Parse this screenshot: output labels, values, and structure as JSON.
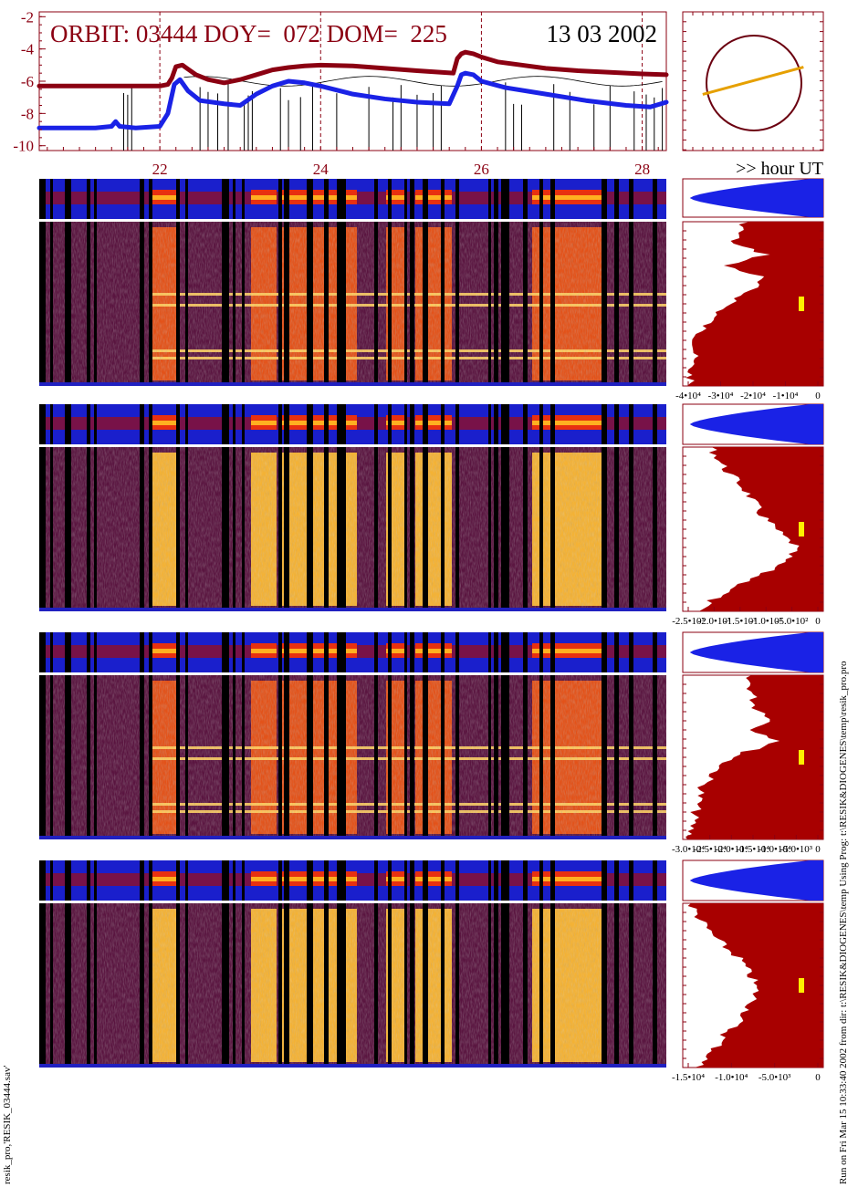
{
  "colors": {
    "dark_red": "#8b0012",
    "blue": "#1a22e6",
    "orange": "#e6a000",
    "fill_red": "#a80000",
    "yellow": "#ffee00",
    "tick": "#8b0012"
  },
  "header": {
    "orbit_text": "ORBIT: 03444 DOY=  072 DOM=  225",
    "date_text": "13 03 2002"
  },
  "footer": {
    "hour_ut_label": ">> hour UT",
    "left_vertical": "resik_pro,'RESIK_03444.sav'",
    "right_vertical": "Run on Fri Mar 15 10:33:40 2002  from dir: t:\\RESIK&DIOGENES\\temp Using Prog: t:\\RESIK&DIOGENES\\temp\\resik_pro.pro"
  },
  "chart_data": [
    {
      "type": "line",
      "name": "orbit-lightcurve",
      "xlim": [
        20.5,
        28.3
      ],
      "ylim": [
        -10.3,
        -1.7
      ],
      "y_ticks": [
        "-2",
        "-4",
        "-6",
        "-8",
        "-10"
      ],
      "x_ticks": [
        "22",
        "24",
        "26",
        "28"
      ],
      "grid_x": [
        22,
        24,
        26,
        28
      ],
      "series": [
        {
          "color": "#8b0012",
          "x": [
            20.5,
            21.0,
            21.5,
            22.0,
            22.1,
            22.15,
            22.2,
            22.28,
            22.35,
            22.45,
            22.6,
            22.8,
            23.0,
            23.2,
            23.4,
            23.6,
            23.8,
            24.0,
            24.4,
            24.8,
            25.2,
            25.5,
            25.65,
            25.7,
            25.75,
            25.8,
            25.9,
            26.0,
            26.2,
            26.5,
            26.8,
            27.2,
            27.6,
            28.0,
            28.3
          ],
          "y": [
            -6.3,
            -6.3,
            -6.3,
            -6.3,
            -6.2,
            -5.8,
            -5.1,
            -5.0,
            -5.25,
            -5.6,
            -5.9,
            -6.1,
            -5.9,
            -5.6,
            -5.3,
            -5.15,
            -5.05,
            -5.0,
            -5.05,
            -5.2,
            -5.35,
            -5.45,
            -5.5,
            -4.6,
            -4.3,
            -4.2,
            -4.3,
            -4.5,
            -4.8,
            -5.0,
            -5.2,
            -5.35,
            -5.45,
            -5.55,
            -5.6
          ]
        },
        {
          "color": "#1a22e6",
          "x": [
            20.5,
            20.8,
            21.2,
            21.4,
            21.45,
            21.5,
            21.7,
            22.0,
            22.1,
            22.18,
            22.25,
            22.35,
            22.5,
            22.8,
            23.0,
            23.2,
            23.4,
            23.6,
            23.8,
            24.0,
            24.4,
            24.8,
            25.2,
            25.6,
            25.7,
            25.75,
            25.8,
            25.9,
            26.0,
            26.3,
            26.8,
            27.3,
            27.8,
            28.1,
            28.3
          ],
          "y": [
            -8.9,
            -8.9,
            -8.9,
            -8.8,
            -8.5,
            -8.8,
            -8.9,
            -8.8,
            -8.0,
            -6.2,
            -5.9,
            -6.6,
            -7.2,
            -7.4,
            -7.5,
            -6.8,
            -6.3,
            -6.0,
            -6.1,
            -6.3,
            -6.8,
            -7.1,
            -7.3,
            -7.4,
            -6.3,
            -5.6,
            -5.5,
            -5.6,
            -6.0,
            -6.4,
            -6.8,
            -7.2,
            -7.5,
            -7.6,
            -7.3
          ]
        }
      ]
    },
    {
      "type": "scatter",
      "name": "orbit-position",
      "circle": true,
      "segment": [
        [
          -0.9,
          -0.2
        ],
        [
          0.95,
          0.28
        ]
      ]
    },
    {
      "type": "heatmap",
      "name": "spectrogram-panels",
      "count": 4,
      "x_ticks": [
        "22",
        "24",
        "26",
        "28"
      ]
    },
    {
      "type": "area",
      "name": "spectrum-profiles",
      "panels": [
        {
          "x_ticks": [
            "-4•10⁴",
            "-3•10⁴",
            "-2•10⁴",
            "-1•10⁴",
            "0"
          ]
        },
        {
          "x_ticks": [
            "-2.5•10³",
            "-2.0•10³",
            "-1.5•10³",
            "-1.0•10³",
            "-5.0•10²",
            "0"
          ]
        },
        {
          "x_ticks": [
            "-3.0•10⁴",
            "-2.5•10⁴",
            "-2.0•10⁴",
            "-1.5•10⁴",
            "-1.0•10⁴",
            "-5.0•10³",
            "0"
          ]
        },
        {
          "x_ticks": [
            "-1.5•10⁴",
            "-1.0•10⁴",
            "-5.0•10³",
            "0"
          ]
        }
      ]
    }
  ]
}
